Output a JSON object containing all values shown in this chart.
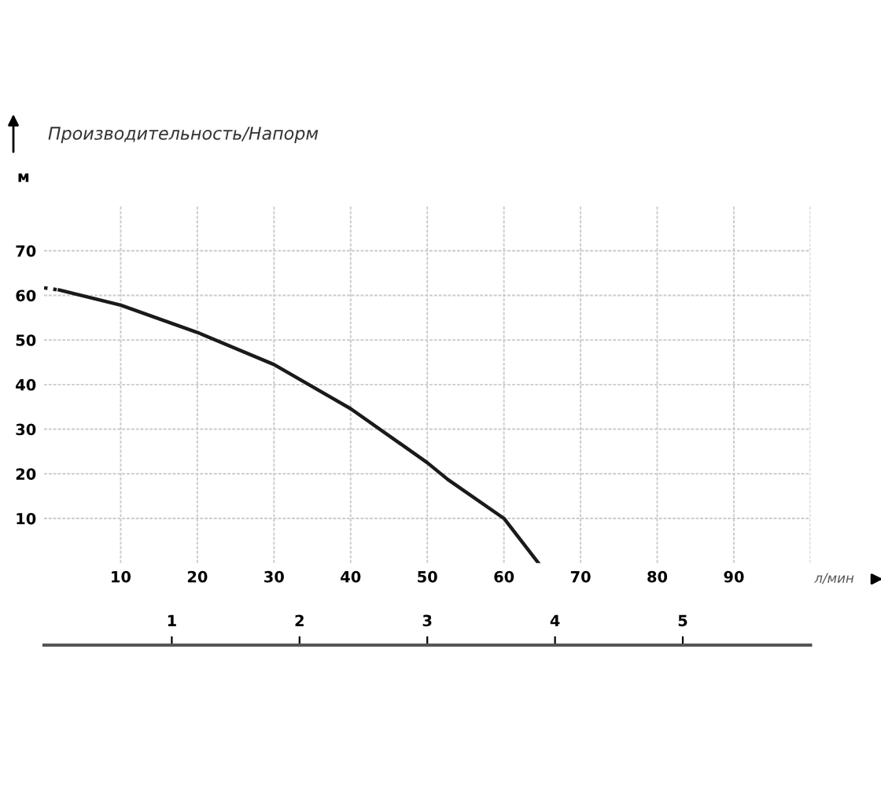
{
  "chart_data": {
    "type": "line",
    "title": "Производительность/Напорм",
    "ylabel": "м",
    "xlabel": "л/мин",
    "series": [
      {
        "color": "#1a1a1a",
        "line_style": "dotted",
        "x": [
          0,
          2
        ],
        "values": [
          61.7,
          61.2
        ]
      },
      {
        "color": "#1a1a1a",
        "line_style": "solid",
        "x": [
          2,
          10,
          20,
          30,
          40,
          50,
          52.7,
          60,
          64.5
        ],
        "values": [
          61.2,
          57.8,
          51.7,
          44.5,
          34.6,
          22.5,
          18.7,
          10,
          0
        ]
      }
    ],
    "xlim": [
      0,
      100
    ],
    "ylim": [
      0,
      80
    ],
    "xticks": [
      10,
      20,
      30,
      40,
      50,
      60,
      70,
      80,
      90
    ],
    "yticks": [
      10,
      20,
      30,
      40,
      50,
      60,
      70
    ],
    "x2lim": [
      0,
      6
    ],
    "x2ticks": [
      1,
      2,
      3,
      4,
      5
    ],
    "grid": true,
    "marker": "none",
    "legend": false
  }
}
